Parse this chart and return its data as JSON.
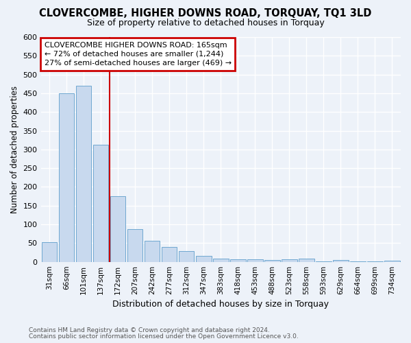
{
  "title": "CLOVERCOMBE, HIGHER DOWNS ROAD, TORQUAY, TQ1 3LD",
  "subtitle": "Size of property relative to detached houses in Torquay",
  "xlabel": "Distribution of detached houses by size in Torquay",
  "ylabel": "Number of detached properties",
  "categories": [
    "31sqm",
    "66sqm",
    "101sqm",
    "137sqm",
    "172sqm",
    "207sqm",
    "242sqm",
    "277sqm",
    "312sqm",
    "347sqm",
    "383sqm",
    "418sqm",
    "453sqm",
    "488sqm",
    "523sqm",
    "558sqm",
    "593sqm",
    "629sqm",
    "664sqm",
    "699sqm",
    "734sqm"
  ],
  "values": [
    53,
    450,
    470,
    312,
    175,
    88,
    56,
    40,
    29,
    15,
    8,
    7,
    7,
    5,
    6,
    8,
    1,
    4,
    1,
    1,
    3
  ],
  "bar_color": "#c8d9ee",
  "bar_edge_color": "#6fa8d0",
  "vline_x": 3.5,
  "vline_color": "#cc0000",
  "ylim": [
    0,
    600
  ],
  "yticks": [
    0,
    50,
    100,
    150,
    200,
    250,
    300,
    350,
    400,
    450,
    500,
    550,
    600
  ],
  "annotation_text": "CLOVERCOMBE HIGHER DOWNS ROAD: 165sqm\n← 72% of detached houses are smaller (1,244)\n27% of semi-detached houses are larger (469) →",
  "annotation_box_color": "#ffffff",
  "annotation_box_edge_color": "#cc0000",
  "footer1": "Contains HM Land Registry data © Crown copyright and database right 2024.",
  "footer2": "Contains public sector information licensed under the Open Government Licence v3.0.",
  "background_color": "#edf2f9",
  "grid_color": "#ffffff",
  "plot_bg_color": "#edf2f9"
}
